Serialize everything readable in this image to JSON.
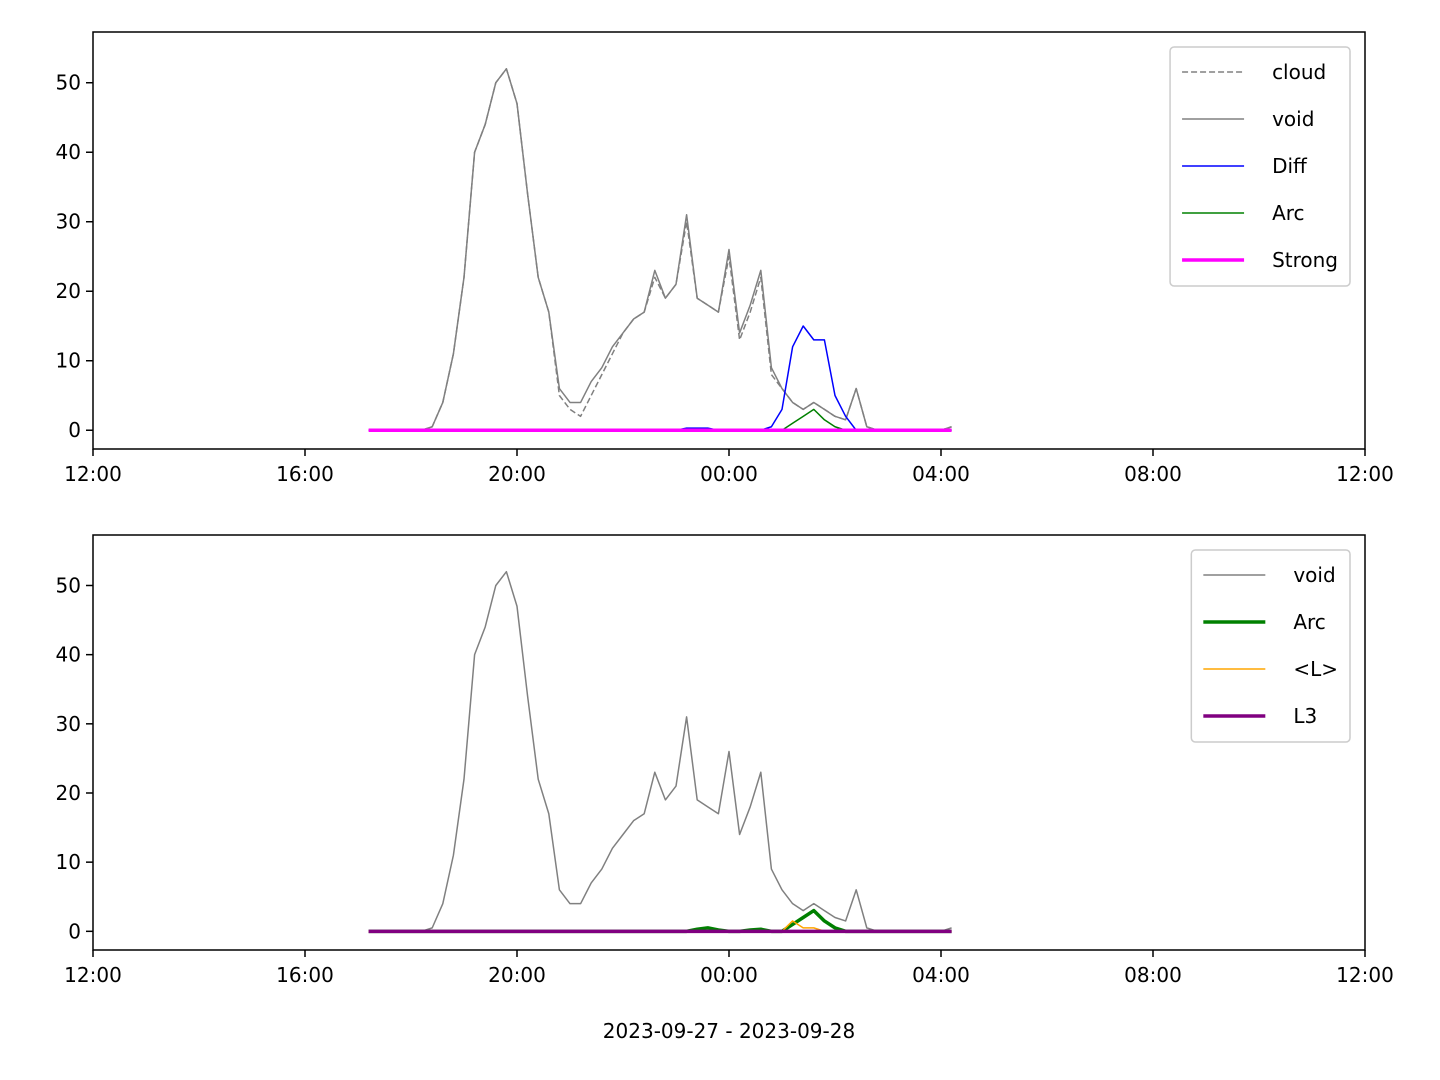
{
  "chart_data": [
    {
      "type": "line",
      "x": [
        17.2,
        17.4,
        17.6,
        17.8,
        18.0,
        18.2,
        18.4,
        18.6,
        18.8,
        19.0,
        19.2,
        19.4,
        19.6,
        19.8,
        20.0,
        20.2,
        20.4,
        20.6,
        20.8,
        21.0,
        21.2,
        21.4,
        21.6,
        21.8,
        22.0,
        22.2,
        22.4,
        22.6,
        22.8,
        23.0,
        23.2,
        23.4,
        23.6,
        23.8,
        24.0,
        24.2,
        24.4,
        24.6,
        24.8,
        25.0,
        25.2,
        25.4,
        25.6,
        25.8,
        26.0,
        26.2,
        26.4,
        26.6,
        26.8,
        27.0,
        27.2,
        27.4,
        27.6,
        27.8,
        28.0,
        28.2
      ],
      "xlim": [
        12,
        36
      ],
      "xticks": [
        {
          "value": 12,
          "label": "12:00"
        },
        {
          "value": 16,
          "label": "16:00"
        },
        {
          "value": 20,
          "label": "20:00"
        },
        {
          "value": 24,
          "label": "00:00"
        },
        {
          "value": 28,
          "label": "04:00"
        },
        {
          "value": 32,
          "label": "08:00"
        },
        {
          "value": 36,
          "label": "12:00"
        }
      ],
      "ylim": [
        -2.7,
        57.3
      ],
      "yticks": [
        0,
        10,
        20,
        30,
        40,
        50
      ],
      "legend": "upper right",
      "series": [
        {
          "name": "cloud",
          "color": "#808080",
          "linestyle": "dashed",
          "linewidth": 1.5,
          "values": [
            0,
            0,
            0,
            0,
            0,
            0,
            0.5,
            4,
            11,
            22,
            40,
            44,
            50,
            52,
            47,
            34,
            22,
            17,
            5,
            3,
            2,
            5,
            8,
            11,
            14,
            16,
            17,
            22,
            19,
            21,
            30,
            19,
            18,
            17,
            25,
            13,
            17,
            22,
            8,
            6,
            4,
            3,
            4,
            3,
            2,
            1.5,
            6,
            0.5,
            0,
            0,
            0,
            0,
            0,
            0,
            0,
            0.5
          ]
        },
        {
          "name": "void",
          "color": "#808080",
          "linestyle": "solid",
          "linewidth": 1.5,
          "values": [
            0,
            0,
            0,
            0,
            0,
            0,
            0.5,
            4,
            11,
            22,
            40,
            44,
            50,
            52,
            47,
            34,
            22,
            17,
            6,
            4,
            4,
            7,
            9,
            12,
            14,
            16,
            17,
            23,
            19,
            21,
            31,
            19,
            18,
            17,
            26,
            14,
            18,
            23,
            9,
            6,
            4,
            3,
            4,
            3,
            2,
            1.5,
            6,
            0.5,
            0,
            0,
            0,
            0,
            0,
            0,
            0,
            0.5
          ]
        },
        {
          "name": "Diff",
          "color": "#0000ff",
          "linestyle": "solid",
          "linewidth": 1.5,
          "values": [
            0,
            0,
            0,
            0,
            0,
            0,
            0,
            0,
            0,
            0,
            0,
            0,
            0,
            0,
            0,
            0,
            0,
            0,
            0,
            0,
            0,
            0,
            0,
            0,
            0,
            0,
            0,
            0,
            0,
            0,
            0.3,
            0.3,
            0.3,
            0,
            0,
            0,
            0,
            0,
            0.5,
            3,
            12,
            15,
            13,
            13,
            5,
            2,
            0,
            0,
            0,
            0,
            0,
            0,
            0,
            0,
            0,
            0
          ]
        },
        {
          "name": "Arc",
          "color": "#008000",
          "linestyle": "solid",
          "linewidth": 1.5,
          "values": [
            0,
            0,
            0,
            0,
            0,
            0,
            0,
            0,
            0,
            0,
            0,
            0,
            0,
            0,
            0,
            0,
            0,
            0,
            0,
            0,
            0,
            0,
            0,
            0,
            0,
            0,
            0,
            0,
            0,
            0,
            0,
            0,
            0,
            0,
            0,
            0,
            0,
            0,
            0,
            0,
            1,
            2,
            3,
            1.5,
            0.5,
            0,
            0,
            0,
            0,
            0,
            0,
            0,
            0,
            0,
            0,
            0
          ]
        },
        {
          "name": "Strong",
          "color": "#ff00ff",
          "linestyle": "solid",
          "linewidth": 3.5,
          "values": [
            0,
            0,
            0,
            0,
            0,
            0,
            0,
            0,
            0,
            0,
            0,
            0,
            0,
            0,
            0,
            0,
            0,
            0,
            0,
            0,
            0,
            0,
            0,
            0,
            0,
            0,
            0,
            0,
            0,
            0,
            0,
            0,
            0,
            0,
            0,
            0,
            0,
            0,
            0,
            0,
            0,
            0,
            0,
            0,
            0,
            0,
            0,
            0,
            0,
            0,
            0,
            0,
            0,
            0,
            0,
            0
          ]
        }
      ]
    },
    {
      "type": "line",
      "x": [
        17.2,
        17.4,
        17.6,
        17.8,
        18.0,
        18.2,
        18.4,
        18.6,
        18.8,
        19.0,
        19.2,
        19.4,
        19.6,
        19.8,
        20.0,
        20.2,
        20.4,
        20.6,
        20.8,
        21.0,
        21.2,
        21.4,
        21.6,
        21.8,
        22.0,
        22.2,
        22.4,
        22.6,
        22.8,
        23.0,
        23.2,
        23.4,
        23.6,
        23.8,
        24.0,
        24.2,
        24.4,
        24.6,
        24.8,
        25.0,
        25.2,
        25.4,
        25.6,
        25.8,
        26.0,
        26.2,
        26.4,
        26.6,
        26.8,
        27.0,
        27.2,
        27.4,
        27.6,
        27.8,
        28.0,
        28.2
      ],
      "xlim": [
        12,
        36
      ],
      "xticks": [
        {
          "value": 12,
          "label": "12:00"
        },
        {
          "value": 16,
          "label": "16:00"
        },
        {
          "value": 20,
          "label": "20:00"
        },
        {
          "value": 24,
          "label": "00:00"
        },
        {
          "value": 28,
          "label": "04:00"
        },
        {
          "value": 32,
          "label": "08:00"
        },
        {
          "value": 36,
          "label": "12:00"
        }
      ],
      "ylim": [
        -2.7,
        57.3
      ],
      "yticks": [
        0,
        10,
        20,
        30,
        40,
        50
      ],
      "xlabel": "2023-09-27 - 2023-09-28",
      "legend": "upper right",
      "series": [
        {
          "name": "void",
          "color": "#808080",
          "linestyle": "solid",
          "linewidth": 1.5,
          "values": [
            0,
            0,
            0,
            0,
            0,
            0,
            0.5,
            4,
            11,
            22,
            40,
            44,
            50,
            52,
            47,
            34,
            22,
            17,
            6,
            4,
            4,
            7,
            9,
            12,
            14,
            16,
            17,
            23,
            19,
            21,
            31,
            19,
            18,
            17,
            26,
            14,
            18,
            23,
            9,
            6,
            4,
            3,
            4,
            3,
            2,
            1.5,
            6,
            0.5,
            0,
            0,
            0,
            0,
            0,
            0,
            0,
            0.5
          ]
        },
        {
          "name": "Arc",
          "color": "#008000",
          "linestyle": "solid",
          "linewidth": 3.5,
          "values": [
            0,
            0,
            0,
            0,
            0,
            0,
            0,
            0,
            0,
            0,
            0,
            0,
            0,
            0,
            0,
            0,
            0,
            0,
            0,
            0,
            0,
            0,
            0,
            0,
            0,
            0,
            0,
            0,
            0,
            0,
            0,
            0.3,
            0.5,
            0.2,
            0,
            0,
            0.2,
            0.3,
            0,
            0,
            1,
            2,
            3,
            1.5,
            0.5,
            0,
            0,
            0,
            0,
            0,
            0,
            0,
            0,
            0,
            0,
            0
          ]
        },
        {
          "name": "<L>",
          "color": "#ffa500",
          "linestyle": "solid",
          "linewidth": 1.5,
          "values": [
            0,
            0,
            0,
            0,
            0,
            0,
            0,
            0,
            0,
            0,
            0,
            0,
            0,
            0,
            0,
            0,
            0,
            0,
            0,
            0,
            0,
            0,
            0,
            0,
            0,
            0,
            0,
            0,
            0,
            0,
            0,
            0,
            0,
            0,
            0,
            0,
            0,
            0,
            0,
            0,
            1.5,
            0.5,
            0.5,
            0,
            0,
            0,
            0,
            0,
            0,
            0,
            0,
            0,
            0,
            0,
            0,
            0
          ]
        },
        {
          "name": "L3",
          "color": "#800080",
          "linestyle": "solid",
          "linewidth": 3.5,
          "values": [
            0,
            0,
            0,
            0,
            0,
            0,
            0,
            0,
            0,
            0,
            0,
            0,
            0,
            0,
            0,
            0,
            0,
            0,
            0,
            0,
            0,
            0,
            0,
            0,
            0,
            0,
            0,
            0,
            0,
            0,
            0,
            0,
            0,
            0,
            0,
            0,
            0,
            0,
            0,
            0,
            0,
            0,
            0,
            0,
            0,
            0,
            0,
            0,
            0,
            0,
            0,
            0,
            0,
            0,
            0,
            0
          ]
        }
      ]
    }
  ]
}
